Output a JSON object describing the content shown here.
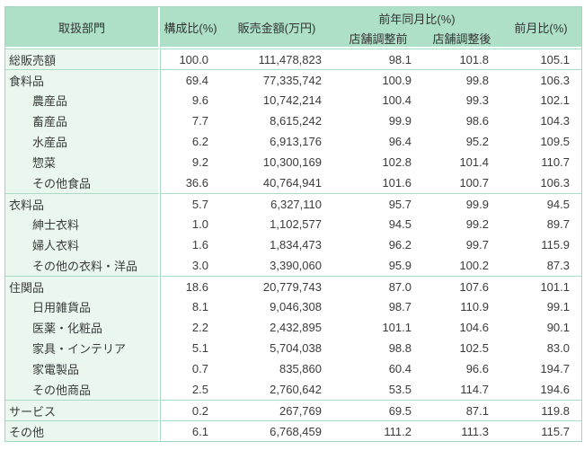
{
  "colors": {
    "header_bg": "#aee0c8",
    "label_bg": "#e9f7ef",
    "border": "#a9dcc3",
    "outer_border": "#9ed7bd",
    "text": "#3b3b3b",
    "header_text": "#333333",
    "page_bg": "#ffffff"
  },
  "table": {
    "headers": {
      "department": "取扱部門",
      "composition": "構成比(%)",
      "sales": "販売金額(万円)",
      "yoy_group": "前年同月比(%)",
      "yoy_before": "店舗調整前",
      "yoy_after": "店舗調整後",
      "mom": "前月比(%)"
    },
    "rows": [
      {
        "label": "総販売額",
        "indent": 0,
        "group_start": true,
        "values": [
          "100.0",
          "111,478,823",
          "98.1",
          "101.8",
          "105.1"
        ]
      },
      {
        "label": "食料品",
        "indent": 0,
        "group_start": true,
        "values": [
          "69.4",
          "77,335,742",
          "100.9",
          "99.8",
          "106.3"
        ]
      },
      {
        "label": "農産品",
        "indent": 1,
        "group_start": false,
        "values": [
          "9.6",
          "10,742,214",
          "100.4",
          "99.3",
          "102.1"
        ]
      },
      {
        "label": "畜産品",
        "indent": 1,
        "group_start": false,
        "values": [
          "7.7",
          "8,615,242",
          "99.9",
          "98.6",
          "104.3"
        ]
      },
      {
        "label": "水産品",
        "indent": 1,
        "group_start": false,
        "values": [
          "6.2",
          "6,913,176",
          "96.4",
          "95.2",
          "109.5"
        ]
      },
      {
        "label": "惣菜",
        "indent": 1,
        "group_start": false,
        "values": [
          "9.2",
          "10,300,169",
          "102.8",
          "101.4",
          "110.7"
        ]
      },
      {
        "label": "その他食品",
        "indent": 1,
        "group_start": false,
        "values": [
          "36.6",
          "40,764,941",
          "101.6",
          "100.7",
          "106.3"
        ]
      },
      {
        "label": "衣料品",
        "indent": 0,
        "group_start": true,
        "values": [
          "5.7",
          "6,327,110",
          "95.7",
          "99.9",
          "94.5"
        ]
      },
      {
        "label": "紳士衣料",
        "indent": 1,
        "group_start": false,
        "values": [
          "1.0",
          "1,102,577",
          "94.5",
          "99.2",
          "89.7"
        ]
      },
      {
        "label": "婦人衣料",
        "indent": 1,
        "group_start": false,
        "values": [
          "1.6",
          "1,834,473",
          "96.2",
          "99.7",
          "115.9"
        ]
      },
      {
        "label": "その他の衣料・洋品",
        "indent": 1,
        "group_start": false,
        "values": [
          "3.0",
          "3,390,060",
          "95.9",
          "100.2",
          "87.3"
        ]
      },
      {
        "label": "住関品",
        "indent": 0,
        "group_start": true,
        "values": [
          "18.6",
          "20,779,743",
          "87.0",
          "107.6",
          "101.1"
        ]
      },
      {
        "label": "日用雑貨品",
        "indent": 1,
        "group_start": false,
        "values": [
          "8.1",
          "9,046,308",
          "98.7",
          "110.9",
          "99.1"
        ]
      },
      {
        "label": "医薬・化粧品",
        "indent": 1,
        "group_start": false,
        "values": [
          "2.2",
          "2,432,895",
          "101.1",
          "104.6",
          "90.1"
        ]
      },
      {
        "label": "家具・インテリア",
        "indent": 1,
        "group_start": false,
        "values": [
          "5.1",
          "5,704,038",
          "98.8",
          "102.5",
          "83.0"
        ]
      },
      {
        "label": "家電製品",
        "indent": 1,
        "group_start": false,
        "values": [
          "0.7",
          "835,860",
          "60.4",
          "96.6",
          "194.7"
        ]
      },
      {
        "label": "その他商品",
        "indent": 1,
        "group_start": false,
        "values": [
          "2.5",
          "2,760,642",
          "53.5",
          "114.7",
          "194.6"
        ]
      },
      {
        "label": "サービス",
        "indent": 0,
        "group_start": true,
        "values": [
          "0.2",
          "267,769",
          "69.5",
          "87.1",
          "119.8"
        ]
      },
      {
        "label": "その他",
        "indent": 0,
        "group_start": true,
        "values": [
          "6.1",
          "6,768,459",
          "111.2",
          "111.3",
          "115.7"
        ]
      }
    ]
  }
}
